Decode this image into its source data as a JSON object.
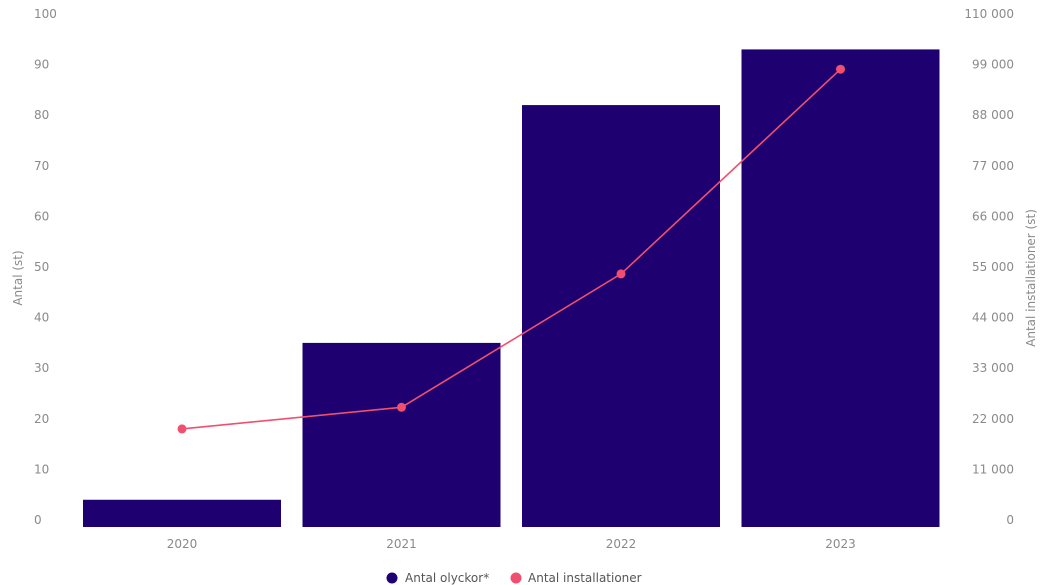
{
  "chart_data": {
    "type": "bar",
    "categories": [
      "2020",
      "2021",
      "2022",
      "2023"
    ],
    "series": [
      {
        "name": "Antal olyckor*",
        "type": "bar",
        "axis": "left",
        "color": "#1e0070",
        "values": [
          4,
          35,
          82,
          93
        ]
      },
      {
        "name": "Antal installationer",
        "type": "line",
        "axis": "right",
        "color": "#f0506e",
        "values": [
          19800,
          24500,
          53500,
          98000
        ]
      }
    ],
    "ylabel": "Antal (st)",
    "y2label": "Antal installationer (st)",
    "ylim": [
      0,
      100
    ],
    "y2lim": [
      0,
      110000
    ],
    "yticks": [
      "0",
      "10",
      "20",
      "30",
      "40",
      "50",
      "60",
      "70",
      "80",
      "90",
      "100"
    ],
    "y2ticks": [
      "0",
      "11 000",
      "22 000",
      "33 000",
      "44 000",
      "55 000",
      "66 000",
      "77 000",
      "88 000",
      "99 000",
      "110 000"
    ],
    "grid": false,
    "legend_position": "bottom-center"
  }
}
